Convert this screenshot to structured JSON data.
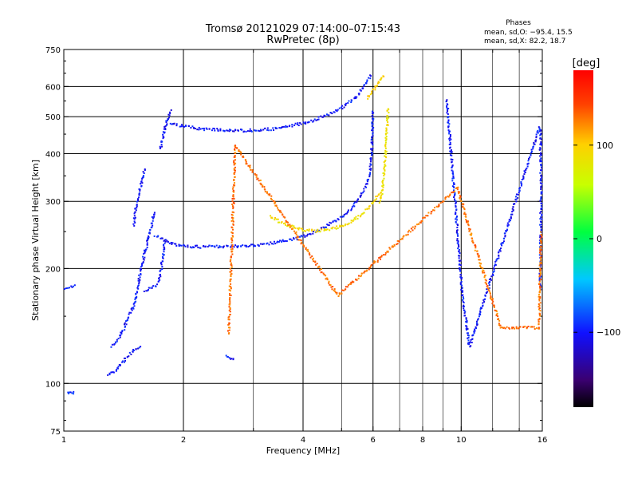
{
  "chart_data": {
    "type": "scatter",
    "title": "Tromsø 20121029 07:14:00–07:15:43",
    "subtitle": "RwPretec (8p)",
    "phase_box": {
      "heading": "Phases",
      "line_o": "mean, sd,O: −95.4, 15.5",
      "line_x": "mean, sd,X:  82.2, 18.7"
    },
    "xlabel": "Frequency [MHz]",
    "ylabel": "Stationary phase Virtual Height [km]",
    "xscale": "log",
    "yscale": "log",
    "xlim": [
      1,
      16
    ],
    "ylim": [
      75,
      750
    ],
    "x_ticks": [
      "1",
      "2",
      "4",
      "6",
      "8",
      "10",
      "16"
    ],
    "x_tick_values": [
      1,
      2,
      4,
      6,
      8,
      10,
      16
    ],
    "y_ticks": [
      "75",
      "100",
      "200",
      "300",
      "400",
      "500",
      "600",
      "750"
    ],
    "y_tick_values": [
      75,
      100,
      200,
      300,
      400,
      500,
      600,
      750
    ],
    "grid": true,
    "colorbar": {
      "label": "[deg]",
      "min": -180,
      "max": 180,
      "ticks": [
        "100",
        "0",
        "−100"
      ],
      "tick_values": [
        100,
        0,
        -100
      ]
    },
    "series": [
      {
        "mode": "O",
        "traces": [
          {
            "phase": -95,
            "points": [
              [
                1.01,
                178
              ],
              [
                1.04,
                179
              ],
              [
                1.07,
                180
              ]
            ]
          },
          {
            "phase": -95,
            "points": [
              [
                1.02,
                95
              ],
              [
                1.05,
                94
              ],
              [
                1.07,
                95
              ]
            ]
          },
          {
            "phase": -100,
            "points": [
              [
                1.29,
                105
              ],
              [
                1.35,
                108
              ],
              [
                1.4,
                113
              ],
              [
                1.45,
                118
              ],
              [
                1.5,
                122
              ],
              [
                1.56,
                126
              ]
            ]
          },
          {
            "phase": -100,
            "points": [
              [
                1.32,
                125
              ],
              [
                1.38,
                132
              ],
              [
                1.42,
                140
              ],
              [
                1.46,
                150
              ],
              [
                1.5,
                160
              ],
              [
                1.53,
                175
              ],
              [
                1.55,
                190
              ],
              [
                1.57,
                205
              ],
              [
                1.6,
                220
              ],
              [
                1.63,
                238
              ],
              [
                1.66,
                258
              ],
              [
                1.68,
                275
              ],
              [
                1.7,
                282
              ]
            ]
          },
          {
            "phase": -100,
            "points": [
              [
                1.5,
                260
              ],
              [
                1.52,
                290
              ],
              [
                1.55,
                320
              ],
              [
                1.58,
                345
              ],
              [
                1.6,
                365
              ]
            ]
          },
          {
            "phase": -100,
            "points": [
              [
                1.6,
                175
              ],
              [
                1.65,
                178
              ],
              [
                1.7,
                180
              ],
              [
                1.73,
                185
              ],
              [
                1.76,
                200
              ],
              [
                1.78,
                220
              ],
              [
                1.8,
                240
              ]
            ]
          },
          {
            "phase": -100,
            "points": [
              [
                1.75,
                410
              ],
              [
                1.78,
                440
              ],
              [
                1.8,
                470
              ],
              [
                1.82,
                490
              ],
              [
                1.85,
                510
              ],
              [
                1.87,
                520
              ]
            ]
          },
          {
            "phase": -100,
            "points": [
              [
                1.85,
                480
              ],
              [
                1.95,
                474
              ],
              [
                2.1,
                468
              ],
              [
                2.3,
                463
              ],
              [
                2.6,
                460
              ],
              [
                2.9,
                460
              ],
              [
                3.2,
                462
              ],
              [
                3.5,
                467
              ],
              [
                3.8,
                475
              ],
              [
                4.1,
                484
              ],
              [
                4.4,
                496
              ],
              [
                4.7,
                510
              ],
              [
                5.0,
                528
              ],
              [
                5.3,
                550
              ],
              [
                5.5,
                570
              ],
              [
                5.7,
                600
              ],
              [
                5.85,
                630
              ],
              [
                5.95,
                645
              ]
            ]
          },
          {
            "phase": -100,
            "points": [
              [
                1.7,
                245
              ],
              [
                1.8,
                236
              ],
              [
                1.9,
                231
              ],
              [
                2.0,
                229
              ],
              [
                2.2,
                228
              ],
              [
                2.4,
                228
              ],
              [
                2.6,
                229
              ],
              [
                2.8,
                229
              ],
              [
                3.0,
                230
              ],
              [
                3.2,
                232
              ],
              [
                3.4,
                234
              ],
              [
                3.6,
                236
              ],
              [
                3.8,
                239
              ],
              [
                4.0,
                243
              ],
              [
                4.2,
                247
              ],
              [
                4.4,
                253
              ],
              [
                4.6,
                259
              ],
              [
                4.8,
                266
              ],
              [
                5.0,
                273
              ],
              [
                5.2,
                283
              ],
              [
                5.4,
                295
              ],
              [
                5.6,
                312
              ],
              [
                5.8,
                335
              ],
              [
                5.9,
                360
              ],
              [
                5.95,
                400
              ],
              [
                5.98,
                450
              ],
              [
                6.0,
                520
              ]
            ]
          },
          {
            "phase": -100,
            "points": [
              [
                2.55,
                118
              ],
              [
                2.6,
                116
              ],
              [
                2.7,
                115
              ]
            ]
          },
          {
            "phase": -100,
            "points": [
              [
                9.2,
                555
              ],
              [
                10.1,
                165
              ],
              [
                10.5,
                125
              ],
              [
                14.5,
                360
              ],
              [
                15.8,
                470
              ],
              [
                15.9,
                320
              ],
              [
                15.8,
                175
              ]
            ]
          }
        ]
      },
      {
        "mode": "X",
        "traces": [
          {
            "phase": 90,
            "points": [
              [
                3.3,
                275
              ],
              [
                3.5,
                265
              ],
              [
                3.7,
                258
              ],
              [
                3.9,
                255
              ],
              [
                4.1,
                252
              ],
              [
                4.3,
                251
              ],
              [
                4.5,
                252
              ],
              [
                4.7,
                254
              ],
              [
                4.9,
                257
              ],
              [
                5.1,
                261
              ],
              [
                5.3,
                266
              ],
              [
                5.5,
                272
              ],
              [
                5.7,
                280
              ],
              [
                5.9,
                292
              ],
              [
                6.1,
                305
              ],
              [
                6.3,
                318
              ]
            ]
          },
          {
            "phase": 85,
            "points": [
              [
                6.25,
                300
              ],
              [
                6.35,
                330
              ],
              [
                6.42,
                370
              ],
              [
                6.47,
                420
              ],
              [
                6.52,
                480
              ],
              [
                6.55,
                530
              ]
            ]
          },
          {
            "phase": 95,
            "points": [
              [
                5.8,
                560
              ],
              [
                6.0,
                585
              ],
              [
                6.2,
                615
              ],
              [
                6.4,
                645
              ]
            ]
          },
          {
            "phase": 130,
            "points": [
              [
                2.6,
                135
              ],
              [
                2.7,
                420
              ],
              [
                4.9,
                170
              ],
              [
                9.8,
                325
              ],
              [
                10.6,
                245
              ],
              [
                12.6,
                140
              ],
              [
                15.7,
                140
              ],
              [
                15.9,
                250
              ]
            ]
          }
        ]
      }
    ]
  }
}
